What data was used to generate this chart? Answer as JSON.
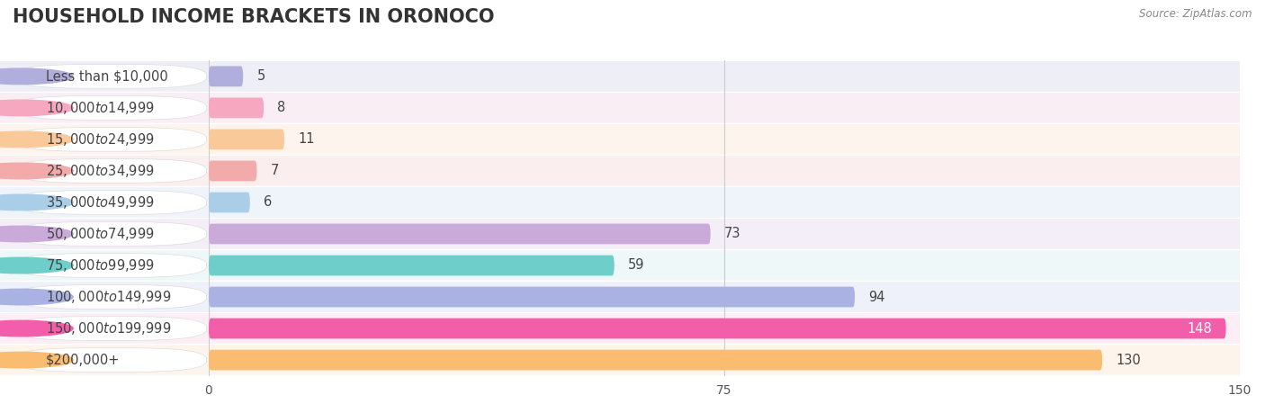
{
  "title": "HOUSEHOLD INCOME BRACKETS IN ORONOCO",
  "source": "Source: ZipAtlas.com",
  "categories": [
    "Less than $10,000",
    "$10,000 to $14,999",
    "$15,000 to $24,999",
    "$25,000 to $34,999",
    "$35,000 to $49,999",
    "$50,000 to $74,999",
    "$75,000 to $99,999",
    "$100,000 to $149,999",
    "$150,000 to $199,999",
    "$200,000+"
  ],
  "values": [
    5,
    8,
    11,
    7,
    6,
    73,
    59,
    94,
    148,
    130
  ],
  "bar_colors": [
    "#b0aedd",
    "#f5a8c0",
    "#f9c99a",
    "#f2aaaa",
    "#aacde8",
    "#c9aad8",
    "#6ececa",
    "#a9b2e2",
    "#f25eaa",
    "#f9bc70"
  ],
  "row_bg_colors": [
    "#eeeef6",
    "#faeef5",
    "#fdf4ed",
    "#faeeee",
    "#eef4fa",
    "#f4eef8",
    "#eef8f8",
    "#eef0fa",
    "#fdeef6",
    "#fdf5ec"
  ],
  "value_label_colors": [
    "#555555",
    "#555555",
    "#555555",
    "#555555",
    "#555555",
    "#555555",
    "#555555",
    "#ffffff",
    "#ffffff",
    "#555555"
  ],
  "xlim": [
    0,
    150
  ],
  "xticks": [
    0,
    75,
    150
  ],
  "bar_height": 0.65,
  "title_fontsize": 15,
  "label_fontsize": 10.5,
  "value_fontsize": 10.5,
  "tick_fontsize": 10,
  "background_color": "#ffffff",
  "grid_color": "#cccccc",
  "label_color": "#444444",
  "source_fontsize": 8.5
}
